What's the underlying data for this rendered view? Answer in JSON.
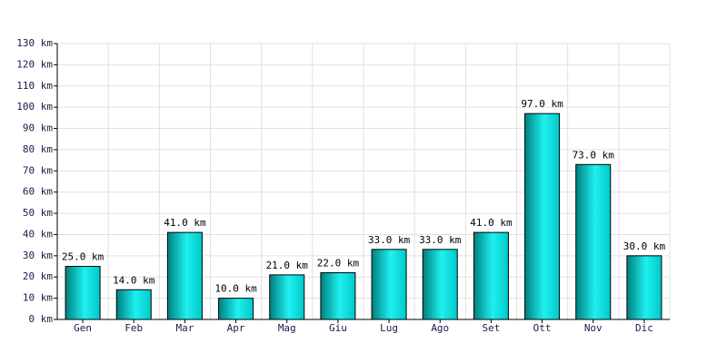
{
  "chart_data": {
    "type": "bar",
    "categories": [
      "Gen",
      "Feb",
      "Mar",
      "Apr",
      "Mag",
      "Giu",
      "Lug",
      "Ago",
      "Set",
      "Ott",
      "Nov",
      "Dic"
    ],
    "values": [
      25,
      14,
      41,
      10,
      21,
      22,
      33,
      33,
      41,
      97,
      73,
      30
    ],
    "value_labels": [
      "25.0 km",
      "14.0 km",
      "41.0 km",
      "10.0 km",
      "21.0 km",
      "22.0 km",
      "33.0 km",
      "33.0 km",
      "41.0 km",
      "97.0 km",
      "73.0 km",
      "30.0 km"
    ],
    "color": "#00c8c8",
    "ylim": [
      0,
      130
    ],
    "yticks": [
      {
        "value": 0,
        "label": "0 km"
      },
      {
        "value": 10,
        "label": "10 km"
      },
      {
        "value": 20,
        "label": "20 km"
      },
      {
        "value": 30,
        "label": "30 km"
      },
      {
        "value": 40,
        "label": "40 km"
      },
      {
        "value": 50,
        "label": "50 km"
      },
      {
        "value": 60,
        "label": "60 km"
      },
      {
        "value": 70,
        "label": "70 km"
      },
      {
        "value": 80,
        "label": "80 km"
      },
      {
        "value": 90,
        "label": "90 km"
      },
      {
        "value": 100,
        "label": "100 km"
      },
      {
        "value": 110,
        "label": "110 km"
      },
      {
        "value": 120,
        "label": "120 km"
      },
      {
        "value": 130,
        "label": "130 km"
      }
    ],
    "grid": true
  }
}
